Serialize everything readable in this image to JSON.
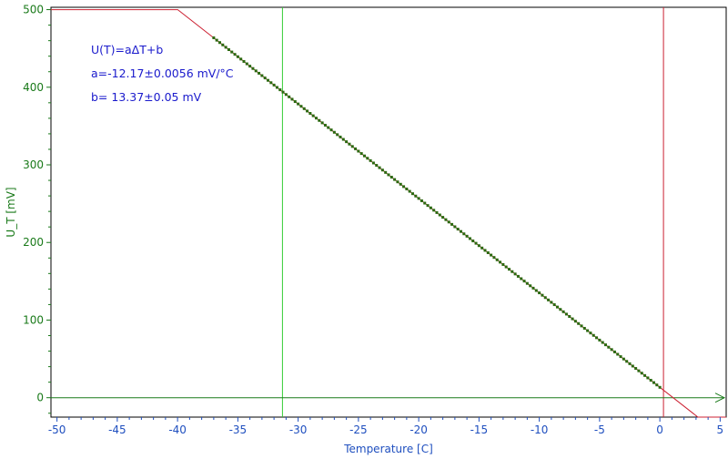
{
  "chart_data": {
    "type": "scatter",
    "xlabel": "Temperature [C]",
    "ylabel": "U_T [mV]",
    "xlim": [
      -50.5,
      5.5
    ],
    "ylim": [
      -25,
      503
    ],
    "xticks": [
      -50,
      -45,
      -40,
      -35,
      -30,
      -25,
      -20,
      -15,
      -10,
      -5,
      0,
      5
    ],
    "yticks": [
      0,
      100,
      200,
      300,
      400,
      500
    ],
    "annotations": [
      "U(T)=aΔT+b",
      "a=-12.17±0.0056 mV/°C",
      "b= 13.37±0.05 mV"
    ],
    "fit": {
      "a": -12.17,
      "b": 13.37,
      "clip_max": 500,
      "clip_min": -25
    },
    "series": [
      {
        "x_start": -37,
        "x_end": 0,
        "x_step": 0.25,
        "color": "#2a6a10"
      }
    ],
    "cursors": [
      {
        "x": -31.3,
        "color": "#33cc33"
      },
      {
        "x": 0.3,
        "color": "#cc2233"
      }
    ],
    "zero_line": {
      "y": 0,
      "color": "#1a7a1a"
    },
    "colors": {
      "axis_x": "#1f4fbf",
      "axis_y": "#1a7a1a",
      "fit_line": "#cc2233"
    },
    "grid": false
  }
}
